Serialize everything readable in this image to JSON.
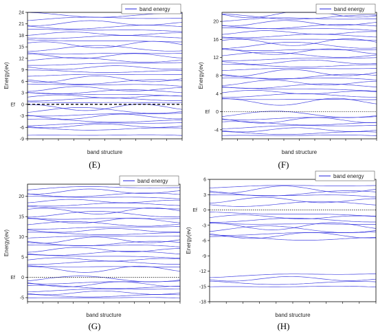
{
  "figure": {
    "accent_color": "#2222dd"
  },
  "chart_data": [
    {
      "panel": "E",
      "type": "line",
      "title": "",
      "xlabel": "band structure",
      "ylabel": "Energy(ev)",
      "ylim": [
        -9,
        24
      ],
      "yticks": [
        -9,
        -6,
        -3,
        0,
        3,
        6,
        9,
        12,
        15,
        18,
        21,
        24
      ],
      "y_tick_labels": [
        "-9",
        "-6",
        "-3",
        "0",
        "3",
        "6",
        "9",
        "12",
        "15",
        "18",
        "21",
        "24"
      ],
      "fermi_label": "Ef",
      "fermi_level": 0,
      "fermi_style": "dashed-bold",
      "legend": "band energy",
      "legend_position": "top-right",
      "caption": "(E)",
      "series_color": "#2222dd",
      "bands": [
        -8.2,
        -6.4,
        -5.6,
        -5.1,
        -4.3,
        -3.2,
        -2.4,
        -1.6,
        -0.8,
        0.6,
        1.3,
        2.0,
        2.6,
        3.3,
        4.0,
        4.8,
        5.9,
        6.6,
        7.6,
        8.6,
        9.6,
        10.7,
        11.6,
        12.6,
        13.6,
        14.6,
        15.6,
        16.6,
        17.6,
        18.4,
        19.2,
        20.2,
        21.2,
        22.2,
        23.3
      ]
    },
    {
      "panel": "F",
      "type": "line",
      "title": "",
      "xlabel": "band structure",
      "ylabel": "Energy(ev)",
      "ylim": [
        -6,
        22
      ],
      "yticks": [
        -4,
        0,
        4,
        8,
        12,
        16,
        20
      ],
      "y_tick_labels": [
        "-4",
        "0",
        "4",
        "8",
        "12",
        "16",
        "20"
      ],
      "fermi_label": "Ef",
      "fermi_level": 0,
      "fermi_style": "dotted",
      "legend": "band energy",
      "legend_position": "top-right",
      "caption": "(F)",
      "series_color": "#2222dd",
      "bands": [
        -5.4,
        -4.7,
        -4.0,
        -3.3,
        -2.6,
        -1.9,
        -1.2,
        -0.6,
        2.2,
        2.9,
        3.6,
        4.3,
        5.0,
        5.7,
        6.4,
        7.1,
        7.8,
        8.6,
        9.4,
        10.2,
        11.0,
        11.8,
        12.6,
        13.3,
        14.0,
        14.7,
        15.4,
        16.1,
        16.8,
        17.5,
        18.2,
        18.9,
        19.6,
        20.3,
        21.0,
        21.6
      ]
    },
    {
      "panel": "G",
      "type": "line",
      "title": "",
      "xlabel": "band structure",
      "ylabel": "Energy(ev)",
      "ylim": [
        -6,
        23
      ],
      "yticks": [
        -5,
        0,
        5,
        10,
        15,
        20
      ],
      "y_tick_labels": [
        "-5",
        "0",
        "5",
        "10",
        "15",
        "20"
      ],
      "fermi_label": "Ef",
      "fermi_level": 0,
      "fermi_style": "dotted",
      "legend": "band energy",
      "legend_position": "top-right",
      "caption": "(G)",
      "series_color": "#2222dd",
      "bands": [
        -5.2,
        -4.5,
        -3.8,
        -3.1,
        -2.4,
        -1.7,
        -1.0,
        -0.4,
        2.0,
        2.8,
        3.6,
        4.4,
        5.2,
        6.0,
        6.8,
        7.6,
        8.4,
        9.2,
        10.0,
        10.8,
        11.6,
        12.4,
        13.2,
        14.0,
        14.8,
        15.6,
        16.4,
        17.2,
        18.0,
        18.8,
        19.6,
        20.4,
        21.2,
        21.9
      ]
    },
    {
      "panel": "H",
      "type": "line",
      "title": "",
      "xlabel": "band structure",
      "ylabel": "Energy(ev)",
      "ylim": [
        -18,
        6
      ],
      "yticks": [
        -18,
        -15,
        -12,
        -9,
        -6,
        -3,
        0,
        3,
        6
      ],
      "y_tick_labels": [
        "-18",
        "-15",
        "-12",
        "-9",
        "-6",
        "-3",
        "0",
        "3",
        "6"
      ],
      "fermi_label": "Ef",
      "fermi_level": 0,
      "fermi_style": "dotted",
      "legend": "band energy",
      "legend_position": "top-right",
      "caption": "(H)",
      "series_color": "#2222dd",
      "bands": [
        -15.2,
        -14.3,
        -13.5,
        -12.8,
        -5.6,
        -5.0,
        -4.4,
        -3.8,
        -3.2,
        -2.6,
        -2.0,
        -1.4,
        -0.8,
        1.2,
        1.9,
        2.6,
        3.3,
        4.0,
        4.6
      ]
    }
  ]
}
